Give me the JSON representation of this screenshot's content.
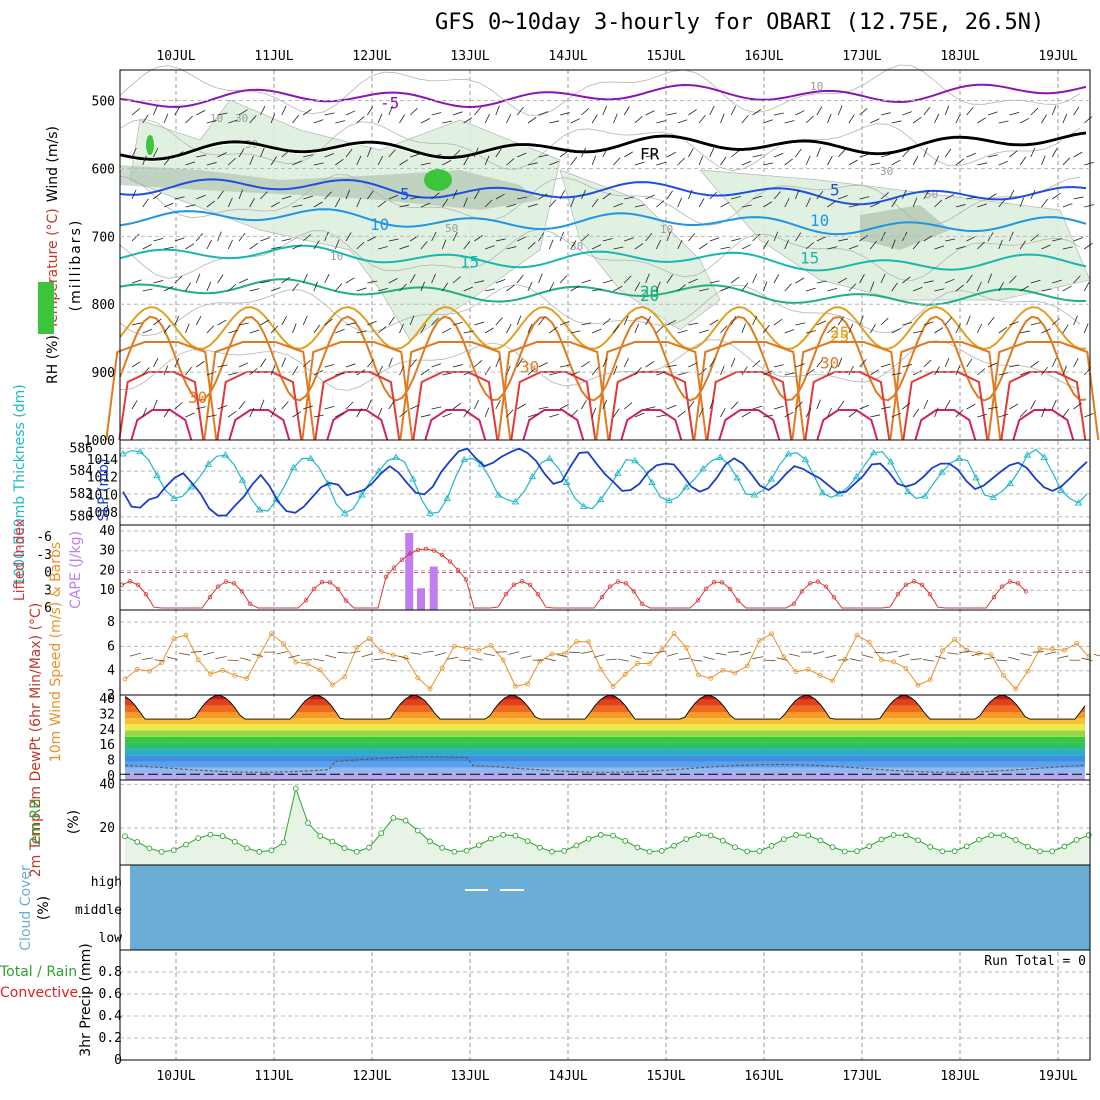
{
  "title": "GFS 0~10day 3-hourly for OBARI (12.75E, 26.5N)",
  "chart_data": [
    {
      "type": "line",
      "panel": "upper-air",
      "ylabel_parts": [
        {
          "text": "Wind (m/s)",
          "color": "#000000"
        },
        {
          "text": "Temperature (°C)",
          "color": "#c0392b"
        },
        {
          "text": "RH (%)",
          "color": "#000000"
        }
      ],
      "ylabel": "(millibars)",
      "y_ticks": [
        500,
        600,
        700,
        800,
        900,
        1000
      ],
      "ylim": [
        455,
        1000
      ],
      "x_dates": [
        "10JUL",
        "11JUL",
        "12JUL",
        "13JUL",
        "14JUL",
        "15JUL",
        "16JUL",
        "17JUL",
        "18JUL",
        "19JUL"
      ],
      "temperature_contours": [
        {
          "label": "-5",
          "level_mb": 500,
          "color": "#8a14b4"
        },
        {
          "label": "FR",
          "level_mb": 575,
          "color": "#000000"
        },
        {
          "label": "5",
          "level_mb": 625,
          "color": "#1f4fe0"
        },
        {
          "label": "10",
          "level_mb": 670,
          "color": "#1e96e6"
        },
        {
          "label": "15",
          "level_mb": 725,
          "color": "#15b8b0"
        },
        {
          "label": "20",
          "level_mb": 775,
          "color": "#1fb080"
        },
        {
          "label": "25",
          "level_mb": 835,
          "color": "#e0a020"
        },
        {
          "label": "30",
          "level_mb": 880,
          "color": "#e07a20"
        }
      ],
      "rh_contour_labels": [
        "10",
        "30",
        "50"
      ]
    },
    {
      "type": "line",
      "panel": "thickness-slp",
      "ylabel_left": "1000-500mb Thickness (dm)",
      "ylabel_right": "SLP (mb)",
      "thickness_ticks": [
        580,
        582,
        584,
        586
      ],
      "slp_ticks": [
        1008,
        1010,
        1012,
        1014
      ],
      "series": [
        {
          "name": "1000-500mb Thickness",
          "color": "#1fb8c8",
          "values": [
            585.5,
            585.8,
            585.7,
            585,
            583.6,
            582.3,
            581.6,
            581.8,
            582.6,
            583.5,
            584.6,
            585.3,
            585.4,
            584.6,
            583.2,
            581.6,
            580.6,
            580.5,
            581.5,
            582.8,
            584.3,
            585.1,
            585.1,
            584.3,
            582.9,
            581.1,
            580.3,
            580.7,
            581.9,
            583.1,
            584,
            584.9,
            585.2,
            584.8,
            583.3,
            581.5,
            580.3,
            580.4,
            581.6,
            583.5,
            585,
            585.1,
            584.6,
            583.4,
            581.9,
            581.5,
            581.3,
            582.2,
            583.5,
            584.7,
            585.1,
            584.3,
            583,
            581.6,
            580.9,
            580.7,
            581.5,
            582.6,
            583.8,
            585,
            584.9,
            584.2,
            583,
            581.7,
            581.4,
            581.7,
            582.6,
            583.3,
            584.2,
            584.9,
            585.2,
            584.6,
            583.4,
            582,
            581.9,
            582.3,
            583.3,
            584.6,
            585.5,
            585.6,
            585,
            583.6,
            582.1,
            581.7,
            582,
            582.6,
            583.5,
            584.6,
            585.6,
            585.7,
            584.8,
            583.4,
            582.2,
            581.6,
            581.8,
            582.9,
            583.9,
            584.7,
            585.1,
            584.9,
            583.4,
            581.9,
            581.7,
            582.2,
            582.9,
            584,
            585.4,
            585.9,
            585.2,
            583.8,
            582.3,
            581.6,
            581.2,
            582
          ]
        },
        {
          "name": "SLP",
          "color": "#1a3ec8",
          "values": [
            1010.4,
            1008.7,
            1008.6,
            1009.5,
            1009.8,
            1011,
            1012,
            1012.5,
            1011.4,
            1010.2,
            1008.5,
            1007.7,
            1007.7,
            1008.8,
            1009.8,
            1011.2,
            1012.3,
            1011.1,
            1009.3,
            1008.2,
            1008,
            1008.7,
            1009.8,
            1010.9,
            1011.4,
            1011.2,
            1010,
            1010.3,
            1010.6,
            1011.4,
            1012.5,
            1013.3,
            1012.6,
            1011.4,
            1010.3,
            1010.1,
            1011,
            1012.7,
            1013.9,
            1015,
            1015.3,
            1014.2,
            1013.3,
            1013.7,
            1014.4,
            1014.9,
            1015.3,
            1014.8,
            1013.9,
            1012.4,
            1011.3,
            1011.6,
            1013.3,
            1014.8,
            1014.9,
            1013.6,
            1012.4,
            1011.5,
            1010.5,
            1010.6,
            1011.3,
            1012.6,
            1013.4,
            1013.6,
            1013.5,
            1012.3,
            1011,
            1010.4,
            1010.8,
            1012,
            1013.5,
            1014.2,
            1013.6,
            1012.4,
            1011.1,
            1010.6,
            1011.3,
            1012.4,
            1013.3,
            1013,
            1012.4,
            1011.9,
            1011.1,
            1010.3,
            1010.4,
            1011.3,
            1012.2,
            1013.5,
            1013.6,
            1012.6,
            1011.3,
            1011,
            1011.3,
            1012.1,
            1013.1,
            1013.6,
            1013.6,
            1012.9,
            1011.6,
            1010.7,
            1011.1,
            1011.9,
            1012.7,
            1013.4,
            1013.7,
            1013.1,
            1011.9,
            1010.9,
            1010.5,
            1011,
            1011.9,
            1012.9,
            1013.8
          ]
        }
      ]
    },
    {
      "type": "bar",
      "panel": "lifted-index-cape",
      "ylabel_left": "Lifted Index",
      "ylabel_right": "CAPE (J/kg)",
      "li_ticks": [
        -6,
        -3,
        0,
        3,
        6
      ],
      "cape_ticks": [
        10,
        20,
        30,
        40
      ],
      "cape_values": [
        {
          "x": 12.38,
          "value": 39
        },
        {
          "x": 12.5,
          "value": 11
        },
        {
          "x": 12.63,
          "value": 22
        }
      ],
      "li_series": {
        "name": "Lifted Index",
        "color": "#d83a3a"
      }
    },
    {
      "type": "line",
      "panel": "10m-wind",
      "ylabel": "10m Wind Speed (m/s) & Barbs",
      "y_ticks": [
        2,
        4,
        6,
        8
      ],
      "ylim": [
        2,
        9
      ]
    },
    {
      "type": "area",
      "panel": "2m-temp",
      "ylabel": "2m Temp 2m DewPt (6hr Min/Max) (°C)",
      "y_ticks": [
        0,
        8,
        16,
        24,
        32,
        40
      ],
      "ylim": [
        -2,
        42
      ],
      "temp_range": [
        28,
        41
      ]
    },
    {
      "type": "line",
      "panel": "2m-rh",
      "ylabel": "2m RH (%)",
      "y_ticks": [
        20,
        40
      ],
      "ylim": [
        3,
        42
      ],
      "series_name": "2m RH",
      "color": "#2ea32e"
    },
    {
      "type": "area",
      "panel": "cloud-cover",
      "ylabel": "Cloud Cover (%)",
      "y_ticks": [
        "high",
        "middle",
        "low"
      ],
      "fill_color": "#6aaed6"
    },
    {
      "type": "bar",
      "panel": "precip",
      "ylabel_parts": [
        {
          "text": "3hr Precip (mm)",
          "color": "#000000"
        },
        {
          "text": "Total / Rain",
          "color": "#2ea32e"
        },
        {
          "text": "Convective",
          "color": "#e02020"
        }
      ],
      "y_ticks": [
        0,
        0.2,
        0.4,
        0.6,
        0.8
      ],
      "ylim": [
        0,
        1
      ],
      "annotation": "Run Total = 0"
    }
  ]
}
